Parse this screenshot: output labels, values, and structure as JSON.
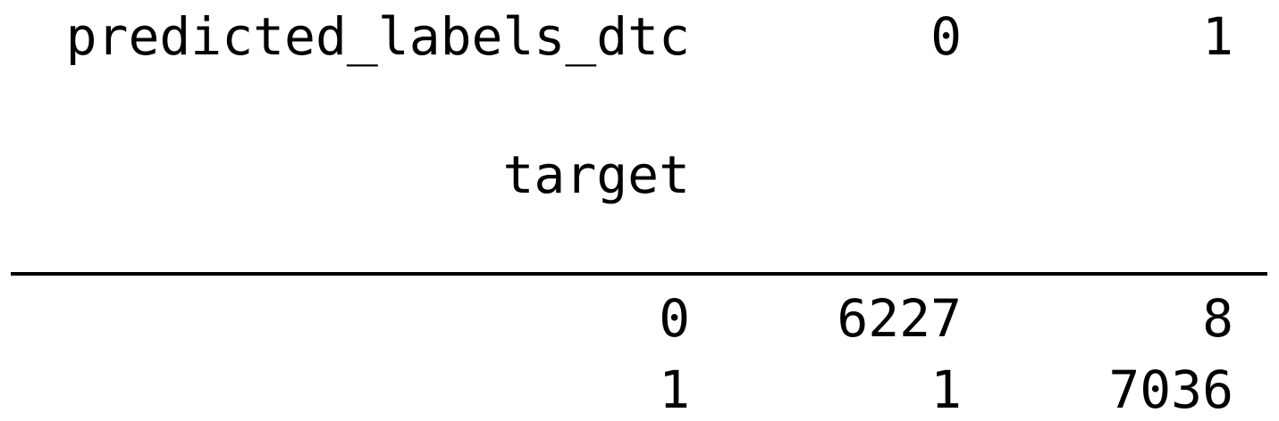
{
  "table": {
    "columns_name": "predicted_labels_dtc",
    "columns": [
      "0",
      "1"
    ],
    "index_name": "target",
    "rows": [
      {
        "index": "0",
        "values": [
          "6227",
          "8"
        ]
      },
      {
        "index": "1",
        "values": [
          "1",
          "7036"
        ]
      }
    ]
  }
}
